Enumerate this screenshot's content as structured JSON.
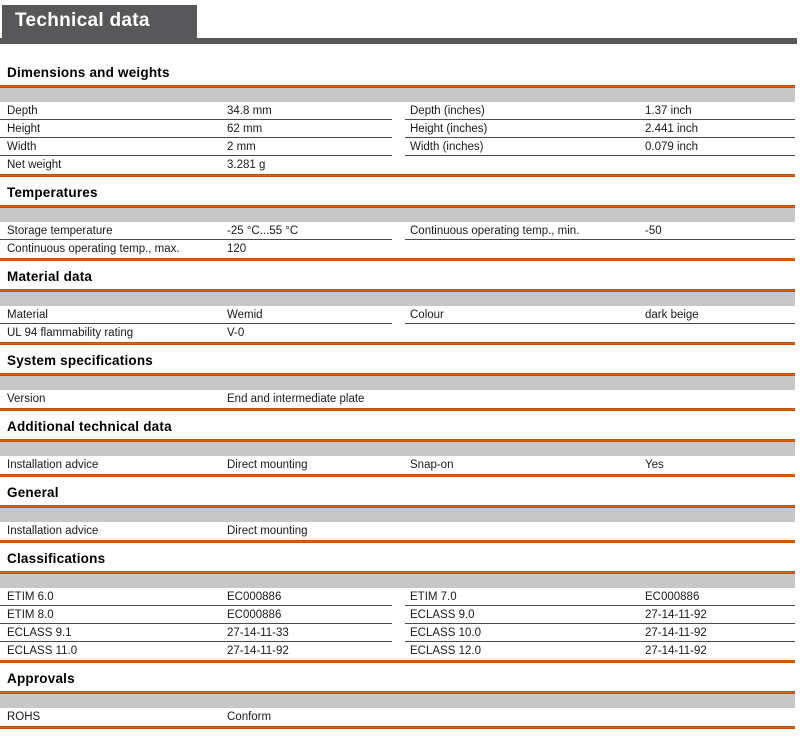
{
  "page_title": "Technical data",
  "colors": {
    "accent_orange": "#cc5200",
    "header_gray": "#58585a",
    "band_gray": "#c7c7c7",
    "row_rule": "#4a4a4a"
  },
  "sections": [
    {
      "title": "Dimensions and weights",
      "rows": [
        [
          "Depth",
          "34.8 mm",
          "Depth (inches)",
          "1.37 inch"
        ],
        [
          "Height",
          "62 mm",
          "Height (inches)",
          "2.441 inch"
        ],
        [
          "Width",
          "2 mm",
          "Width (inches)",
          "0.079 inch"
        ],
        [
          "Net weight",
          "3.281 g",
          "",
          ""
        ]
      ]
    },
    {
      "title": "Temperatures",
      "rows": [
        [
          "Storage temperature",
          "-25 °C...55 °C",
          "Continuous operating temp., min.",
          "-50"
        ],
        [
          "Continuous operating temp., max.",
          "120",
          "",
          ""
        ]
      ]
    },
    {
      "title": "Material data",
      "rows": [
        [
          "Material",
          "Wemid",
          "Colour",
          "dark beige"
        ],
        [
          "UL 94 flammability rating",
          "V-0",
          "",
          ""
        ]
      ]
    },
    {
      "title": "System specifications",
      "rows": [
        [
          "Version",
          "End and intermediate plate",
          "",
          ""
        ]
      ]
    },
    {
      "title": "Additional technical data",
      "rows": [
        [
          "Installation advice",
          "Direct mounting",
          "Snap-on",
          "Yes"
        ]
      ]
    },
    {
      "title": "General",
      "rows": [
        [
          "Installation advice",
          "Direct mounting",
          "",
          ""
        ]
      ]
    },
    {
      "title": "Classifications",
      "rows": [
        [
          "ETIM 6.0",
          "EC000886",
          "ETIM 7.0",
          "EC000886"
        ],
        [
          "ETIM 8.0",
          "EC000886",
          "ECLASS 9.0",
          "27-14-11-92"
        ],
        [
          "ECLASS 9.1",
          "27-14-11-33",
          "ECLASS 10.0",
          "27-14-11-92"
        ],
        [
          "ECLASS 11.0",
          "27-14-11-92",
          "ECLASS 12.0",
          "27-14-11-92"
        ]
      ]
    },
    {
      "title": "Approvals",
      "rows": [
        [
          "ROHS",
          "Conform",
          "",
          ""
        ]
      ]
    }
  ]
}
